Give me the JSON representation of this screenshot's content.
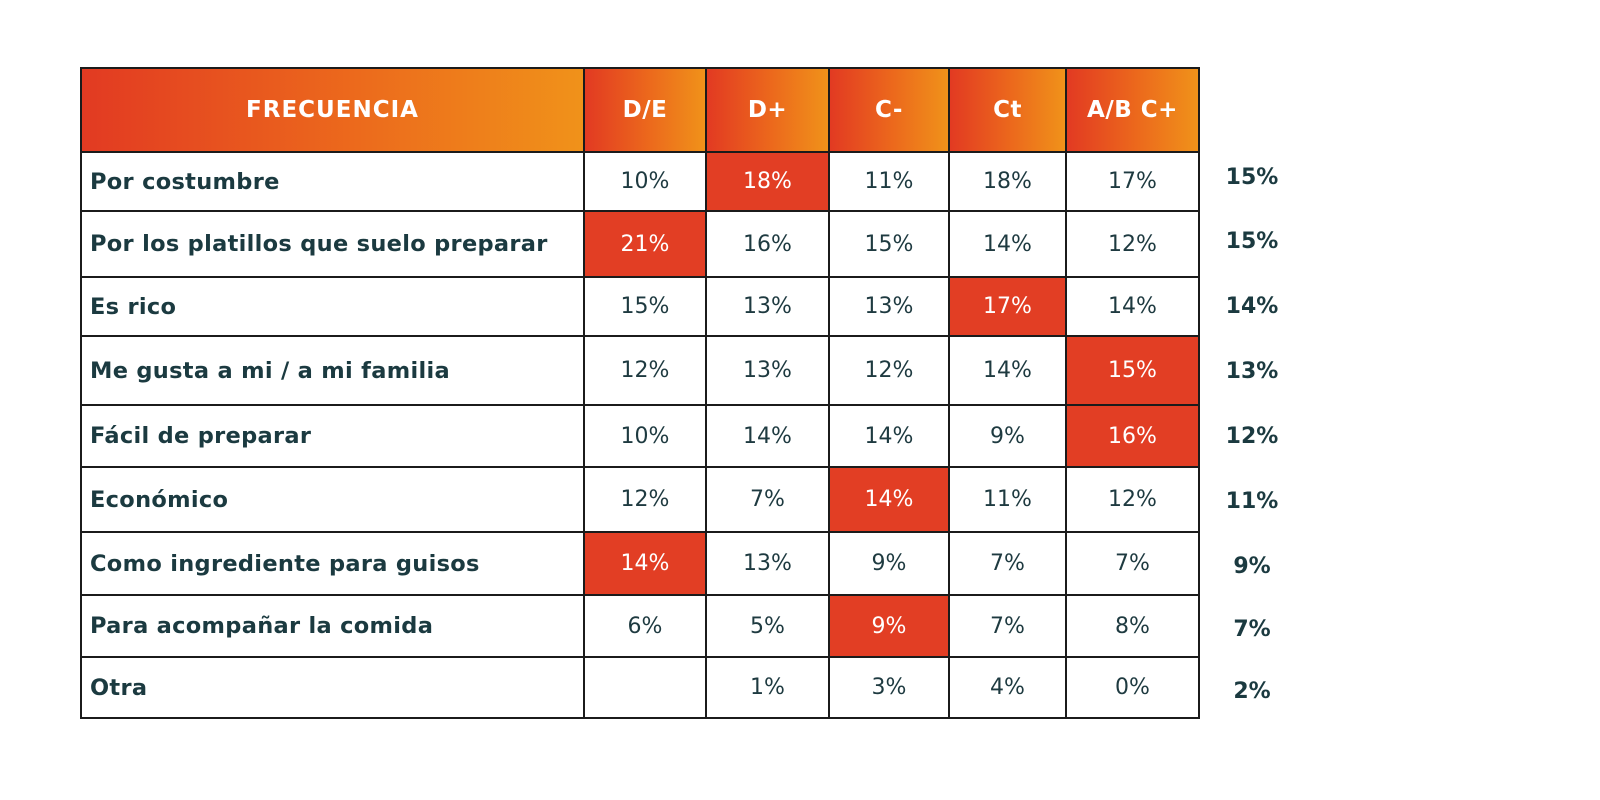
{
  "chart_data": {
    "type": "table",
    "columns": [
      "FRECUENCIA",
      "D/E",
      "D+",
      "C-",
      "Ct",
      "A/B C+"
    ],
    "rows": [
      {
        "label": "Por costumbre",
        "values": [
          "10%",
          "18%",
          "11%",
          "18%",
          "17%"
        ],
        "highlight": [
          false,
          true,
          false,
          false,
          false
        ],
        "total": "15%"
      },
      {
        "label": "Por los platillos que suelo preparar",
        "values": [
          "21%",
          "16%",
          "15%",
          "14%",
          "12%"
        ],
        "highlight": [
          true,
          false,
          false,
          false,
          false
        ],
        "total": "15%"
      },
      {
        "label": "Es rico",
        "values": [
          "15%",
          "13%",
          "13%",
          "17%",
          "14%"
        ],
        "highlight": [
          false,
          false,
          false,
          true,
          false
        ],
        "total": "14%"
      },
      {
        "label": "Me gusta a mi / a mi familia",
        "values": [
          "12%",
          "13%",
          "12%",
          "14%",
          "15%"
        ],
        "highlight": [
          false,
          false,
          false,
          false,
          true
        ],
        "total": "13%"
      },
      {
        "label": "Fácil de preparar",
        "values": [
          "10%",
          "14%",
          "14%",
          "9%",
          "16%"
        ],
        "highlight": [
          false,
          false,
          false,
          false,
          true
        ],
        "total": "12%"
      },
      {
        "label": "Económico",
        "values": [
          "12%",
          "7%",
          "14%",
          "11%",
          "12%"
        ],
        "highlight": [
          false,
          false,
          true,
          false,
          false
        ],
        "total": "11%"
      },
      {
        "label": "Como ingrediente para guisos",
        "values": [
          "14%",
          "13%",
          "9%",
          "7%",
          "7%"
        ],
        "highlight": [
          true,
          false,
          false,
          false,
          false
        ],
        "total": "9%"
      },
      {
        "label": "Para acompañar la comida",
        "values": [
          "6%",
          "5%",
          "9%",
          "7%",
          "8%"
        ],
        "highlight": [
          false,
          false,
          true,
          false,
          false
        ],
        "total": "7%"
      },
      {
        "label": "Otra",
        "values": [
          "",
          "1%",
          "3%",
          "4%",
          "0%"
        ],
        "highlight": [
          false,
          false,
          false,
          false,
          false
        ],
        "total": "2%"
      }
    ]
  },
  "colors": {
    "header_gradient_start": "#e23a22",
    "header_gradient_end": "#f0921a",
    "highlight": "#e23e24",
    "text_dark": "#1b3a40"
  }
}
